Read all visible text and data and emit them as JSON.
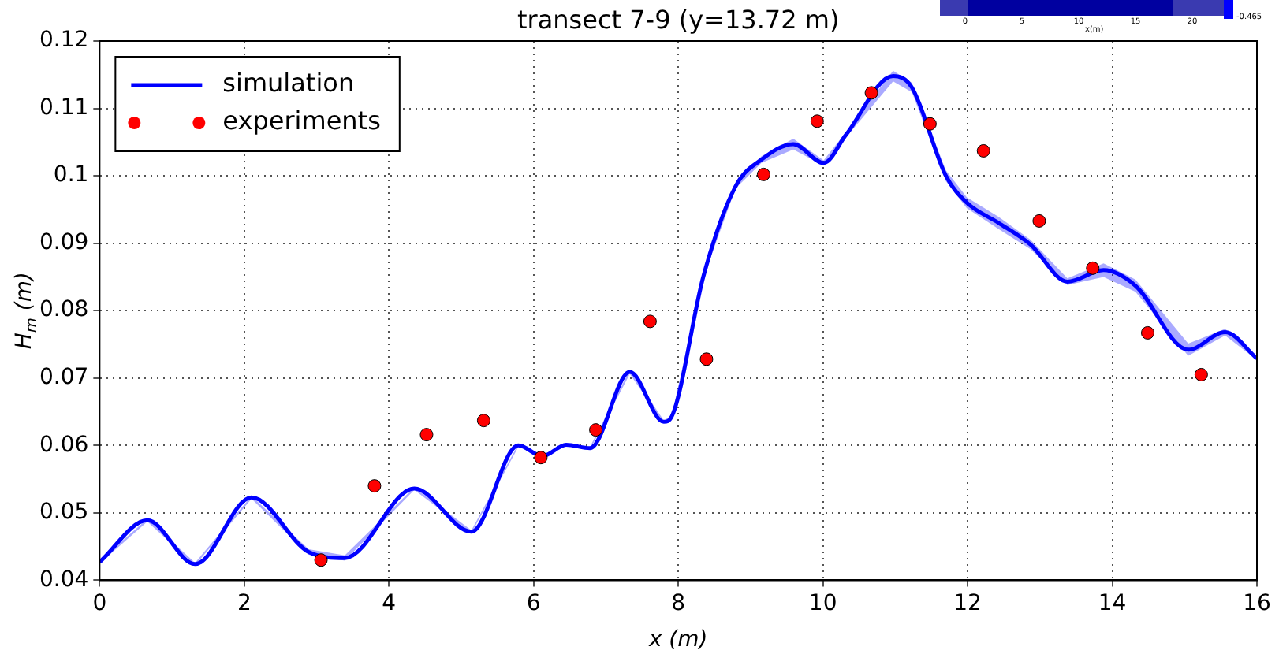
{
  "chart_data": {
    "type": "line",
    "title": "transect 7-9 (y=13.72 m)",
    "xlabel": "x (m)",
    "ylabel": "H$_{m}$ (m)",
    "xlim": [
      0,
      16
    ],
    "xticks": [
      0,
      2,
      4,
      6,
      8,
      10,
      12,
      14,
      16
    ],
    "ylim": [
      0.04,
      0.12
    ],
    "yticks": [
      0.04,
      0.05,
      0.06,
      0.07,
      0.08,
      0.09,
      0.1,
      0.11,
      0.12
    ],
    "grid": true,
    "legend": "top left",
    "annotations": [
      "0",
      "5",
      "10",
      "15",
      "20",
      "x(m)",
      "-0.465"
    ],
    "series": [
      {
        "name": "simulation",
        "color": "#0000ff",
        "marker": "none",
        "line_style": "solid",
        "x": [
          0,
          0.66,
          1.32,
          2.1,
          2.89,
          3.39,
          4.35,
          5.14,
          5.79,
          6.12,
          6.45,
          6.78,
          7.33,
          7.8,
          7.91,
          8.35,
          8.79,
          9.15,
          9.59,
          10.01,
          10.32,
          10.97,
          11.23,
          11.7,
          11.99,
          12.43,
          12.87,
          13.38,
          13.88,
          14.32,
          15.05,
          15.56,
          16.0
        ],
        "values": [
          0.0427,
          0.0489,
          0.0424,
          0.0523,
          0.0442,
          0.0433,
          0.0536,
          0.0472,
          0.06,
          0.0584,
          0.0601,
          0.0596,
          0.0709,
          0.0635,
          0.0643,
          0.0852,
          0.0984,
          0.1024,
          0.1047,
          0.1019,
          0.1061,
          0.1148,
          0.1131,
          0.1,
          0.096,
          0.093,
          0.0898,
          0.0843,
          0.086,
          0.0837,
          0.0742,
          0.0768,
          0.0729
        ],
        "lower": [
          0.0425,
          0.0487,
          0.0422,
          0.0521,
          0.0438,
          0.0429,
          0.0534,
          0.047,
          0.0598,
          0.0582,
          0.0599,
          0.0594,
          0.0706,
          0.0633,
          0.0641,
          0.085,
          0.0981,
          0.1019,
          0.1039,
          0.1015,
          0.1057,
          0.114,
          0.1124,
          0.0992,
          0.0952,
          0.0921,
          0.0891,
          0.0838,
          0.085,
          0.0828,
          0.0733,
          0.0763,
          0.0727
        ],
        "upper": [
          0.0429,
          0.0491,
          0.0426,
          0.0525,
          0.0446,
          0.0437,
          0.0538,
          0.0474,
          0.0602,
          0.0586,
          0.0603,
          0.0598,
          0.0712,
          0.0637,
          0.0645,
          0.0854,
          0.0987,
          0.1029,
          0.1055,
          0.1023,
          0.1065,
          0.1156,
          0.1138,
          0.1008,
          0.0968,
          0.0939,
          0.0905,
          0.0848,
          0.087,
          0.0846,
          0.0751,
          0.0773,
          0.0731
        ]
      },
      {
        "name": "experiments",
        "type": "scatter",
        "color": "#ff0000",
        "marker": "circle",
        "x": [
          3.06,
          3.8,
          4.52,
          5.31,
          6.1,
          6.86,
          7.61,
          8.39,
          9.18,
          9.92,
          10.67,
          11.48,
          12.22,
          12.99,
          13.73,
          14.49,
          15.23
        ],
        "values": [
          0.043,
          0.054,
          0.0616,
          0.0637,
          0.0582,
          0.0623,
          0.0784,
          0.0728,
          0.1002,
          0.1081,
          0.1123,
          0.1077,
          0.1037,
          0.0933,
          0.0863,
          0.0767,
          0.0705
        ]
      }
    ]
  }
}
